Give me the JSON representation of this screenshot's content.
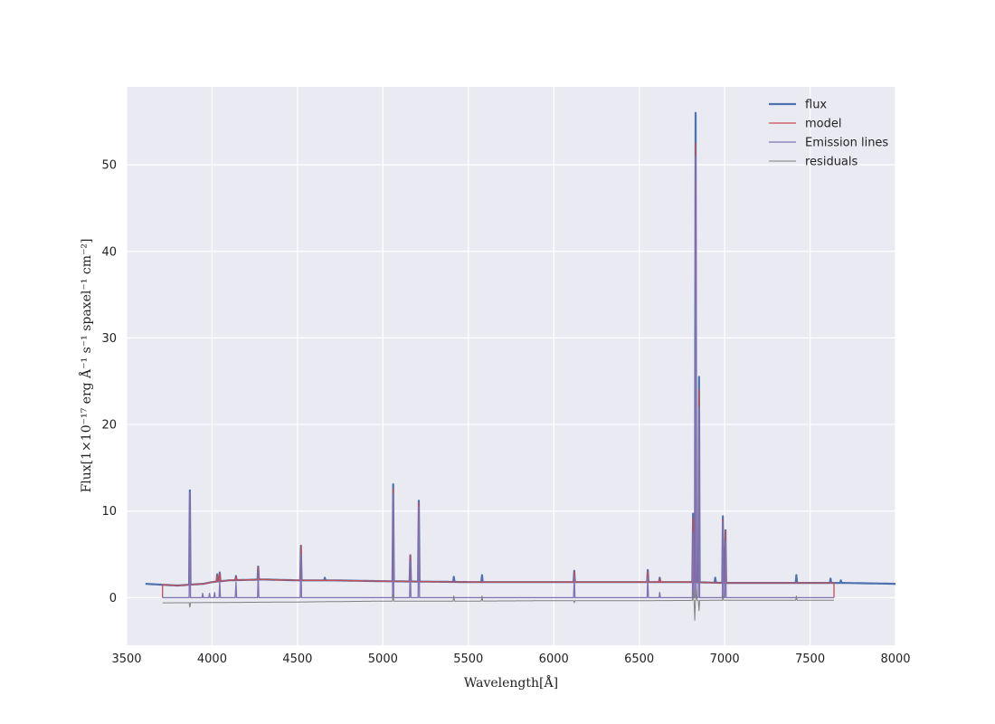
{
  "chart_data": {
    "type": "line",
    "title": "",
    "xlabel": "Wavelength[Å]",
    "ylabel": "Flux[1×10⁻¹⁷ erg Å⁻¹ s⁻¹ spaxel⁻¹ cm⁻²]",
    "xlim": [
      3500,
      8000
    ],
    "ylim": [
      -5.5,
      59
    ],
    "xticks": [
      3500,
      4000,
      4500,
      5000,
      5500,
      6000,
      6500,
      7000,
      7500,
      8000
    ],
    "yticks": [
      0,
      10,
      20,
      30,
      40,
      50
    ],
    "grid": true,
    "legend_position": "top-right",
    "colors": {
      "background": "#eaeaf2",
      "grid": "#ffffff",
      "flux": "#4c72b0",
      "model": "#c44e52",
      "emission": "#8172b2",
      "residuals": "#808080"
    },
    "series": [
      {
        "name": "flux",
        "continuum": {
          "x": [
            3610,
            3700,
            3800,
            3870,
            3950,
            4000,
            4100,
            4300,
            4500,
            4700,
            5000,
            5500,
            6000,
            6500,
            6800,
            7000,
            7200,
            7500,
            7700,
            8000
          ],
          "y": [
            1.6,
            1.5,
            1.4,
            1.5,
            1.6,
            1.8,
            2.0,
            2.1,
            2.0,
            2.0,
            1.9,
            1.8,
            1.8,
            1.8,
            1.8,
            1.7,
            1.7,
            1.7,
            1.7,
            1.6
          ]
        },
        "peaks": [
          {
            "x": 3870,
            "y": 12.4
          },
          {
            "x": 4030,
            "y": 2.7
          },
          {
            "x": 4045,
            "y": 2.9
          },
          {
            "x": 4140,
            "y": 2.5
          },
          {
            "x": 4270,
            "y": 3.6
          },
          {
            "x": 4520,
            "y": 6.0
          },
          {
            "x": 4660,
            "y": 2.3
          },
          {
            "x": 5060,
            "y": 13.1
          },
          {
            "x": 5160,
            "y": 4.9
          },
          {
            "x": 5210,
            "y": 11.2
          },
          {
            "x": 5415,
            "y": 2.4
          },
          {
            "x": 5580,
            "y": 2.6
          },
          {
            "x": 6120,
            "y": 3.1
          },
          {
            "x": 6550,
            "y": 3.2
          },
          {
            "x": 6620,
            "y": 2.3
          },
          {
            "x": 6815,
            "y": 9.7
          },
          {
            "x": 6830,
            "y": 56.0
          },
          {
            "x": 6850,
            "y": 25.5
          },
          {
            "x": 6945,
            "y": 2.3
          },
          {
            "x": 6990,
            "y": 9.4
          },
          {
            "x": 7005,
            "y": 7.8
          },
          {
            "x": 7420,
            "y": 2.6
          },
          {
            "x": 7620,
            "y": 2.2
          },
          {
            "x": 7680,
            "y": 2.0
          }
        ]
      },
      {
        "name": "model",
        "continuum": {
          "x": [
            3710,
            3800,
            3870,
            3950,
            4000,
            4100,
            4300,
            4500,
            4700,
            5000,
            5500,
            6000,
            6500,
            6800,
            7000,
            7200,
            7500,
            7640
          ],
          "y": [
            1.5,
            1.4,
            1.5,
            1.6,
            1.8,
            2.0,
            2.1,
            2.0,
            2.0,
            1.9,
            1.8,
            1.8,
            1.8,
            1.8,
            1.7,
            1.7,
            1.7,
            1.7
          ]
        },
        "peaks": [
          {
            "x": 3870,
            "y": 12.0
          },
          {
            "x": 4030,
            "y": 2.6
          },
          {
            "x": 4045,
            "y": 2.8
          },
          {
            "x": 4140,
            "y": 2.4
          },
          {
            "x": 4270,
            "y": 3.5
          },
          {
            "x": 4520,
            "y": 6.0
          },
          {
            "x": 5060,
            "y": 12.6
          },
          {
            "x": 5160,
            "y": 4.9
          },
          {
            "x": 5210,
            "y": 10.9
          },
          {
            "x": 6120,
            "y": 3.0
          },
          {
            "x": 6550,
            "y": 3.0
          },
          {
            "x": 6620,
            "y": 2.2
          },
          {
            "x": 6815,
            "y": 9.2
          },
          {
            "x": 6830,
            "y": 52.5
          },
          {
            "x": 6850,
            "y": 24.0
          },
          {
            "x": 6990,
            "y": 9.0
          },
          {
            "x": 7005,
            "y": 7.8
          }
        ]
      },
      {
        "name": "Emission lines",
        "continuum": {
          "x": [
            3710,
            7640
          ],
          "y": [
            0.0,
            0.0
          ]
        },
        "peaks": [
          {
            "x": 3870,
            "y": 12.2
          },
          {
            "x": 3945,
            "y": 0.5
          },
          {
            "x": 3985,
            "y": 0.5
          },
          {
            "x": 4015,
            "y": 0.6
          },
          {
            "x": 4045,
            "y": 2.0
          },
          {
            "x": 4140,
            "y": 1.8
          },
          {
            "x": 4270,
            "y": 3.0
          },
          {
            "x": 4520,
            "y": 5.0
          },
          {
            "x": 5060,
            "y": 12.0
          },
          {
            "x": 5160,
            "y": 4.2
          },
          {
            "x": 5210,
            "y": 10.5
          },
          {
            "x": 6120,
            "y": 2.5
          },
          {
            "x": 6550,
            "y": 2.3
          },
          {
            "x": 6620,
            "y": 0.6
          },
          {
            "x": 6815,
            "y": 7.5
          },
          {
            "x": 6830,
            "y": 51.0
          },
          {
            "x": 6850,
            "y": 22.0
          },
          {
            "x": 6990,
            "y": 8.7
          },
          {
            "x": 7005,
            "y": 6.5
          }
        ]
      },
      {
        "name": "residuals",
        "continuum": {
          "x": [
            3710,
            4500,
            5000,
            5500,
            6000,
            6500,
            7000,
            7500,
            7640
          ],
          "y": [
            -0.6,
            -0.5,
            -0.4,
            -0.4,
            -0.35,
            -0.35,
            -0.3,
            -0.3,
            -0.3
          ]
        },
        "peaks": [
          {
            "x": 3870,
            "y": -1.1
          },
          {
            "x": 5060,
            "y": 0.3
          },
          {
            "x": 5415,
            "y": 0.2
          },
          {
            "x": 5580,
            "y": 0.2
          },
          {
            "x": 6120,
            "y": -0.6
          },
          {
            "x": 6815,
            "y": 0.8
          },
          {
            "x": 6825,
            "y": -2.6
          },
          {
            "x": 6835,
            "y": 1.2
          },
          {
            "x": 6850,
            "y": -1.5
          },
          {
            "x": 6990,
            "y": 0.2
          },
          {
            "x": 7420,
            "y": 0.2
          }
        ]
      }
    ]
  }
}
